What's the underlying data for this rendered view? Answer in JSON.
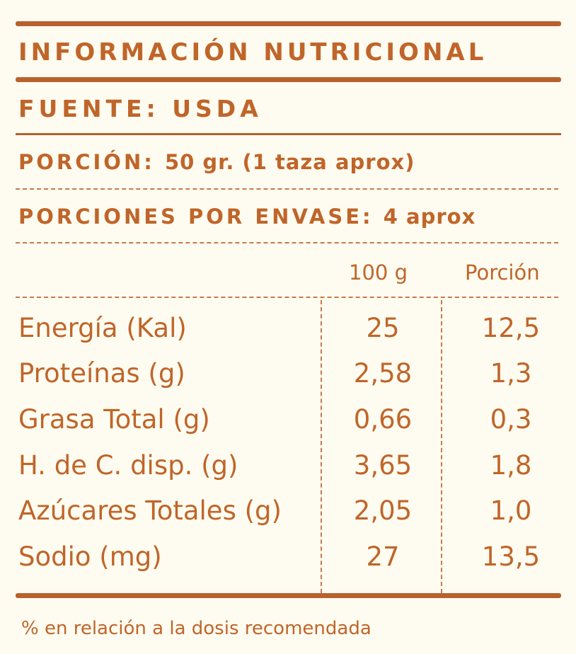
{
  "title": "INFORMACIÓN NUTRICIONAL",
  "source": "FUENTE: USDA",
  "serving": {
    "label": "PORCIÓN:",
    "value": "50 gr. (1 taza aprox)"
  },
  "servings_per_package": {
    "label": "PORCIONES POR ENVASE:",
    "value": "4 aprox"
  },
  "columns": {
    "per100": "100 g",
    "per_serving": "Porción"
  },
  "rows": [
    {
      "name": "Energía (Kal)",
      "per100": "25",
      "per_serving": "12,5"
    },
    {
      "name": "Proteínas (g)",
      "per100": "2,58",
      "per_serving": "1,3"
    },
    {
      "name": "Grasa Total (g)",
      "per100": "0,66",
      "per_serving": "0,3"
    },
    {
      "name": "H. de C. disp. (g)",
      "per100": "3,65",
      "per_serving": "1,8"
    },
    {
      "name": "Azúcares Totales (g)",
      "per100": "2,05",
      "per_serving": "1,0"
    },
    {
      "name": "Sodio (mg)",
      "per100": "27",
      "per_serving": "13,5"
    }
  ],
  "footnote": "% en relación a la dosis recomendada",
  "colors": {
    "text": "#C0652A",
    "rule": "#B8612E",
    "background": "#FEFCF0"
  }
}
